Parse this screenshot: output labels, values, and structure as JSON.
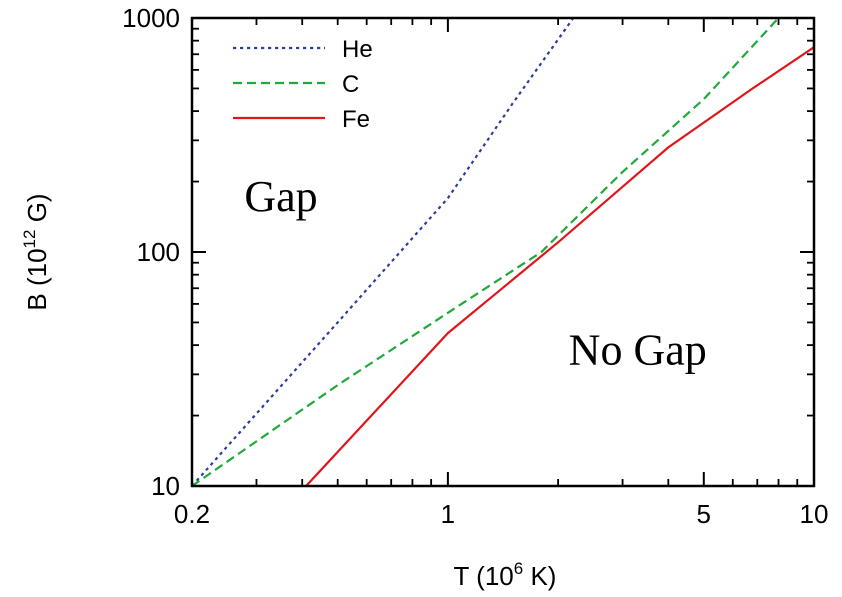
{
  "chart_data": {
    "type": "line",
    "xlabel": {
      "prefix": "T (10",
      "exp": "6",
      "suffix": " K)"
    },
    "ylabel": {
      "prefix": "B (10",
      "exp": "12",
      "suffix": " G)"
    },
    "xscale": "log",
    "yscale": "log",
    "xlim": [
      0.2,
      10
    ],
    "ylim": [
      10,
      1000
    ],
    "x_tick_labels": [
      {
        "value": 0.2,
        "label": "0.2"
      },
      {
        "value": 1,
        "label": "1"
      },
      {
        "value": 5,
        "label": "5"
      },
      {
        "value": 10,
        "label": "10"
      }
    ],
    "y_tick_labels": [
      {
        "value": 10,
        "label": "10"
      },
      {
        "value": 100,
        "label": "100"
      },
      {
        "value": 1000,
        "label": "1000"
      }
    ],
    "legend_position": "top-left",
    "grid": false,
    "annotations": [
      {
        "text": "Gap",
        "x": 0.35,
        "y": 150
      },
      {
        "text": "No Gap",
        "x": 3.3,
        "y": 33
      }
    ],
    "series": [
      {
        "name": "He",
        "color": "#2c3e9b",
        "style": "dotted",
        "x": [
          0.2,
          0.5,
          1,
          1.5,
          2.2
        ],
        "y": [
          10,
          50,
          170,
          430,
          1000
        ]
      },
      {
        "name": "C",
        "color": "#1faa3a",
        "style": "dashed",
        "x": [
          0.2,
          0.5,
          1,
          1.8,
          3,
          5,
          8
        ],
        "y": [
          10,
          27,
          55,
          100,
          220,
          450,
          1000
        ]
      },
      {
        "name": "Fe",
        "color": "#e0161c",
        "style": "solid",
        "x": [
          0.41,
          1,
          2,
          4,
          6.8,
          10
        ],
        "y": [
          10,
          45,
          110,
          280,
          500,
          750
        ]
      }
    ]
  }
}
